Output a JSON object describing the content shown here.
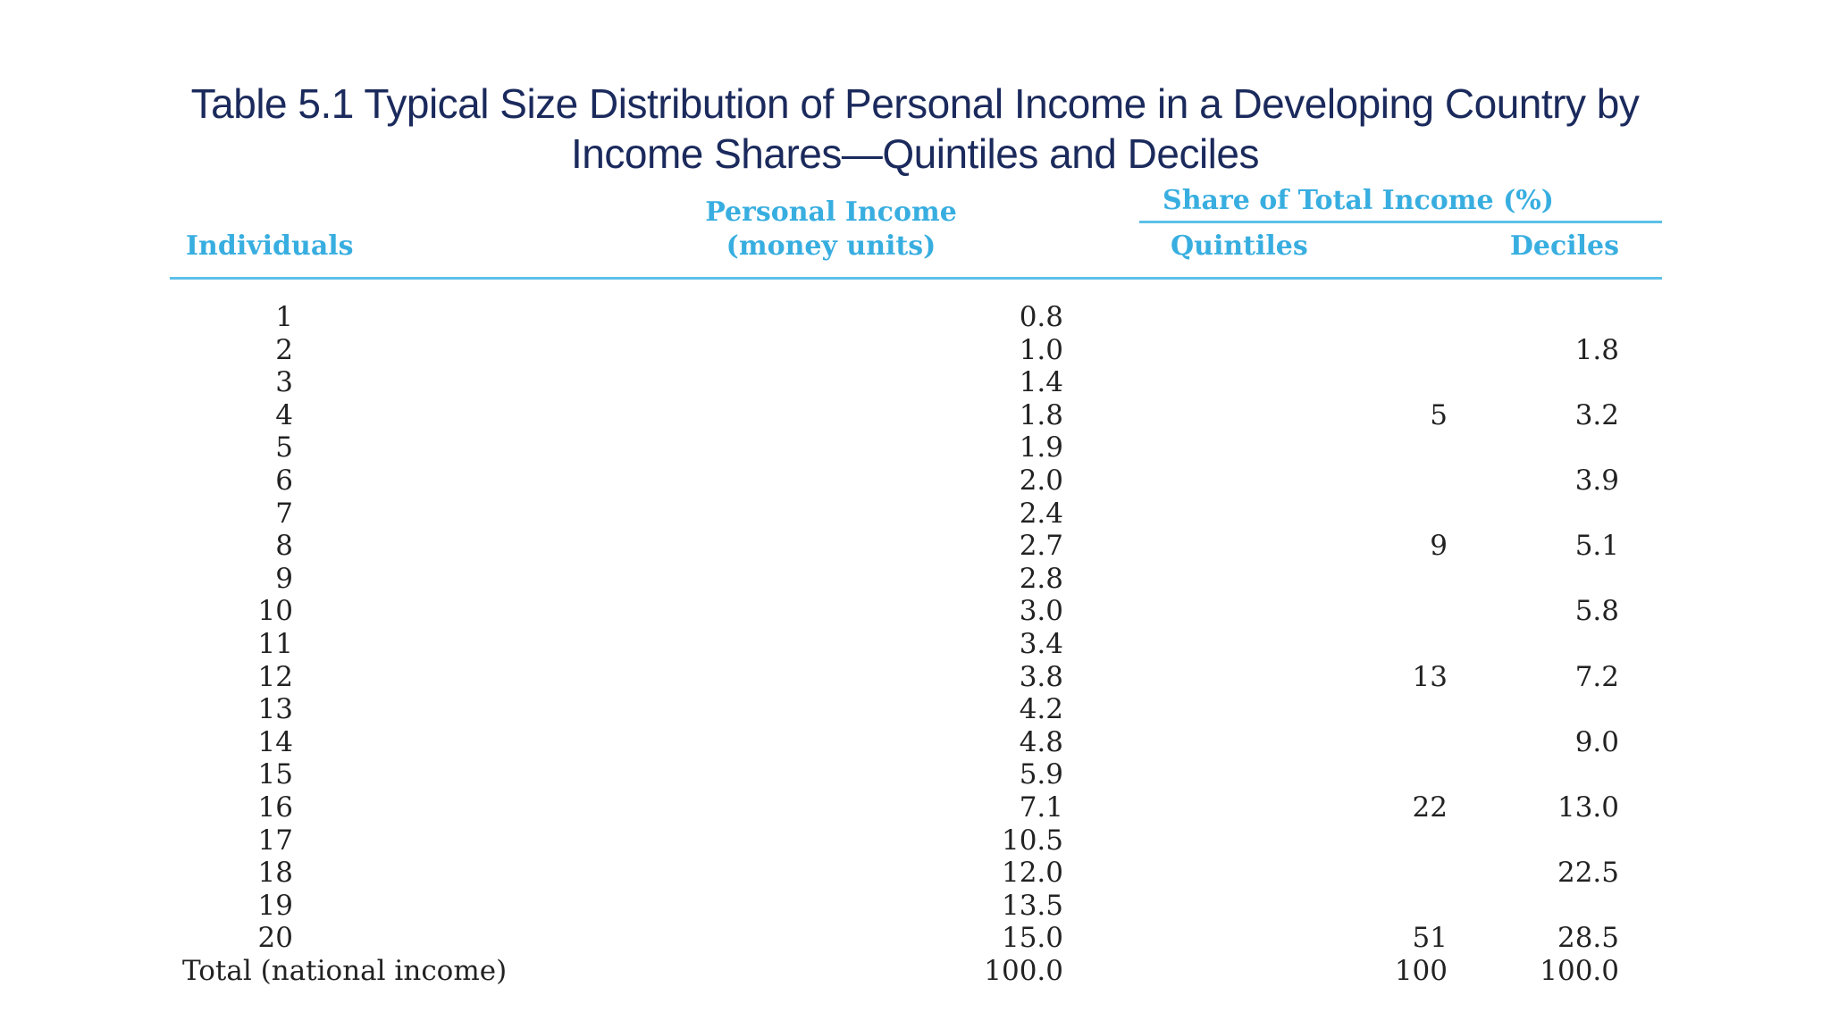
{
  "title": {
    "line1": "Table 5.1  Typical Size Distribution of Personal Income in a Developing Country by",
    "line2": "Income Shares—Quintiles and Deciles"
  },
  "table": {
    "headers": {
      "individuals": "Individuals",
      "personal_income_line1": "Personal Income",
      "personal_income_line2": "(money units)",
      "share_group": "Share of Total Income (%)",
      "quintiles": "Quintiles",
      "deciles": "Deciles"
    },
    "rows": [
      {
        "individual": "1",
        "income": "0.8",
        "quintile": "",
        "decile": ""
      },
      {
        "individual": "2",
        "income": "1.0",
        "quintile": "",
        "decile": "1.8"
      },
      {
        "individual": "3",
        "income": "1.4",
        "quintile": "",
        "decile": ""
      },
      {
        "individual": "4",
        "income": "1.8",
        "quintile": "5",
        "decile": "3.2"
      },
      {
        "individual": "5",
        "income": "1.9",
        "quintile": "",
        "decile": ""
      },
      {
        "individual": "6",
        "income": "2.0",
        "quintile": "",
        "decile": "3.9"
      },
      {
        "individual": "7",
        "income": "2.4",
        "quintile": "",
        "decile": ""
      },
      {
        "individual": "8",
        "income": "2.7",
        "quintile": "9",
        "decile": "5.1"
      },
      {
        "individual": "9",
        "income": "2.8",
        "quintile": "",
        "decile": ""
      },
      {
        "individual": "10",
        "income": "3.0",
        "quintile": "",
        "decile": "5.8"
      },
      {
        "individual": "11",
        "income": "3.4",
        "quintile": "",
        "decile": ""
      },
      {
        "individual": "12",
        "income": "3.8",
        "quintile": "13",
        "decile": "7.2"
      },
      {
        "individual": "13",
        "income": "4.2",
        "quintile": "",
        "decile": ""
      },
      {
        "individual": "14",
        "income": "4.8",
        "quintile": "",
        "decile": "9.0"
      },
      {
        "individual": "15",
        "income": "5.9",
        "quintile": "",
        "decile": ""
      },
      {
        "individual": "16",
        "income": "7.1",
        "quintile": "22",
        "decile": "13.0"
      },
      {
        "individual": "17",
        "income": "10.5",
        "quintile": "",
        "decile": ""
      },
      {
        "individual": "18",
        "income": "12.0",
        "quintile": "",
        "decile": "22.5"
      },
      {
        "individual": "19",
        "income": "13.5",
        "quintile": "",
        "decile": ""
      },
      {
        "individual": "20",
        "income": "15.0",
        "quintile": "51",
        "decile": "28.5"
      }
    ],
    "total": {
      "label": "Total (national income)",
      "income": "100.0",
      "quintile": "100",
      "decile": "100.0"
    }
  },
  "colors": {
    "title": "#1b2a5c",
    "header": "#38aee0",
    "rule": "#5dc0e8",
    "body_text": "#222222"
  }
}
